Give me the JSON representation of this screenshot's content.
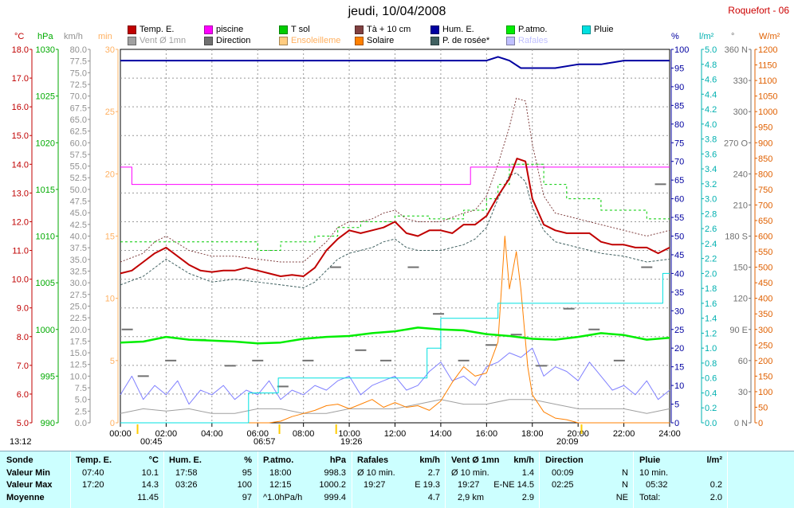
{
  "header": {
    "title": "jeudi, 10/04/2008",
    "station": "Roquefort - 06"
  },
  "legend": [
    {
      "label": "Temp. E.",
      "color": "#c00000"
    },
    {
      "label": "piscine",
      "color": "#ff00ff"
    },
    {
      "label": "T sol",
      "color": "#00cc00"
    },
    {
      "label": "Tà + 10 cm",
      "color": "#804040"
    },
    {
      "label": "Hum. E.",
      "color": "#0000a0"
    },
    {
      "label": "P.atmo.",
      "color": "#00ee00"
    },
    {
      "label": "Pluie",
      "color": "#00e0e0"
    },
    {
      "label": "Vent Ø 1mn",
      "color": "#a0a0a0"
    },
    {
      "label": "Direction",
      "color": "#707070"
    },
    {
      "label": "Ensoleilleme",
      "color": "#ffcc80"
    },
    {
      "label": "Solaire",
      "color": "#ff8000"
    },
    {
      "label": "P. de rosée*",
      "color": "#406060"
    },
    {
      "label": "Rafales",
      "color": "#c0c0ff"
    }
  ],
  "unit_headers": [
    {
      "label": "°C",
      "color": "#c00000"
    },
    {
      "label": "hPa",
      "color": "#00aa00"
    },
    {
      "label": "km/h",
      "color": "#909090"
    },
    {
      "label": "min",
      "color": "#ffb060"
    },
    {
      "label": "%",
      "color": "#0000a0"
    },
    {
      "label": "l/m²",
      "color": "#00b0b0"
    },
    {
      "label": "°",
      "color": "#707070"
    },
    {
      "label": "W/m²",
      "color": "#e06000"
    }
  ],
  "sun_times": [
    "13:12",
    "00:45",
    "06:57",
    "19:26",
    "20:09"
  ],
  "chart_data": {
    "type": "line",
    "x_ticks": [
      "00:00",
      "02:00",
      "04:00",
      "06:00",
      "08:00",
      "10:00",
      "12:00",
      "14:00",
      "16:00",
      "18:00",
      "20:00",
      "22:00",
      "24:00"
    ],
    "xlim": [
      0,
      24
    ],
    "axes": {
      "temp_c": {
        "range": [
          5,
          18
        ],
        "ticks": [
          "5.0",
          "6.0",
          "7.0",
          "8.0",
          "9.0",
          "10.0",
          "11.0",
          "12.0",
          "13.0",
          "14.0",
          "15.0",
          "16.0",
          "17.0",
          "18.0"
        ],
        "color": "#c00000"
      },
      "pressure_hpa": {
        "range": [
          990,
          1030
        ],
        "ticks": [
          "990",
          "995",
          "1000",
          "1005",
          "1010",
          "1015",
          "1020",
          "1025",
          "1030"
        ],
        "color": "#00aa00"
      },
      "wind_kmh": {
        "range": [
          0,
          80
        ],
        "step": 2.5,
        "color": "#909090"
      },
      "sun_min": {
        "range": [
          0,
          30
        ],
        "ticks": [
          "0",
          "5",
          "10",
          "15",
          "20",
          "25",
          "30"
        ],
        "color": "#ffb060"
      },
      "humidity_pct": {
        "range": [
          0,
          100
        ],
        "step": 5,
        "color": "#0000a0"
      },
      "rain_lm2": {
        "range": [
          0,
          5
        ],
        "step": 0.2,
        "color": "#00b0b0"
      },
      "direction_deg": {
        "range": [
          0,
          360
        ],
        "ticks": [
          "0 N",
          "30",
          "60",
          "90 E",
          "120",
          "150",
          "180 S",
          "210",
          "240",
          "270 O",
          "300",
          "330",
          "360 N"
        ],
        "color": "#707070"
      },
      "solar_wm2": {
        "range": [
          0,
          1200
        ],
        "step": 50,
        "color": "#e06000"
      }
    },
    "series": [
      {
        "name": "Temp. E.",
        "axis": "temp_c",
        "color": "#c00000",
        "width": 2,
        "x": [
          0,
          0.5,
          1,
          1.5,
          2,
          2.5,
          3,
          3.5,
          4,
          4.5,
          5,
          5.5,
          6,
          6.5,
          7,
          7.5,
          8,
          8.5,
          9,
          9.5,
          10,
          10.5,
          11,
          11.5,
          12,
          12.5,
          13,
          13.5,
          14,
          14.5,
          15,
          15.5,
          16,
          16.5,
          17,
          17.33,
          17.7,
          18,
          18.5,
          19,
          19.5,
          20,
          20.5,
          21,
          21.5,
          22,
          22.5,
          23,
          23.5,
          24
        ],
        "y": [
          10.2,
          10.3,
          10.6,
          10.9,
          11.1,
          10.8,
          10.5,
          10.3,
          10.25,
          10.3,
          10.3,
          10.4,
          10.3,
          10.2,
          10.1,
          10.15,
          10.1,
          10.4,
          11.0,
          11.4,
          11.7,
          11.6,
          11.7,
          11.8,
          12.0,
          11.6,
          11.5,
          11.7,
          11.7,
          11.6,
          11.9,
          11.9,
          12.2,
          12.9,
          13.5,
          14.2,
          14.1,
          12.8,
          11.9,
          11.7,
          11.6,
          11.6,
          11.6,
          11.3,
          11.2,
          11.2,
          11.1,
          11.1,
          10.9,
          11.1
        ]
      },
      {
        "name": "Tà + 10 cm",
        "axis": "temp_c",
        "color": "#804040",
        "dash": "2,2",
        "x": [
          0,
          1,
          1.5,
          2,
          3,
          4,
          5,
          6,
          7,
          8,
          9,
          9.5,
          10,
          10.5,
          11,
          11.5,
          12,
          12.5,
          13,
          14,
          15,
          15.5,
          16,
          16.5,
          17,
          17.3,
          17.7,
          18,
          18.5,
          19,
          20,
          21,
          22,
          23,
          24
        ],
        "y": [
          10.6,
          10.9,
          11.3,
          11.5,
          11.0,
          10.8,
          10.8,
          10.7,
          10.6,
          10.6,
          11.3,
          11.8,
          12.0,
          12.0,
          12.1,
          12.3,
          12.4,
          12.1,
          12.0,
          12.0,
          12.3,
          12.4,
          12.9,
          14.0,
          15.3,
          16.3,
          16.2,
          14.7,
          12.9,
          12.3,
          12.1,
          11.9,
          11.7,
          11.5,
          11.7
        ]
      },
      {
        "name": "P. de rosée*",
        "axis": "temp_c",
        "color": "#406060",
        "dash": "3,2",
        "x": [
          0,
          1,
          1.5,
          2,
          3,
          4,
          5,
          6,
          7,
          8,
          8.5,
          9,
          9.5,
          10,
          10.5,
          11,
          11.5,
          12,
          12.5,
          13,
          14,
          15,
          15.5,
          16,
          16.5,
          17,
          17.3,
          17.7,
          18,
          18.5,
          19,
          20,
          21,
          22,
          23,
          24
        ],
        "y": [
          9.8,
          10.1,
          10.4,
          10.7,
          10.2,
          9.9,
          10.0,
          9.9,
          9.8,
          9.7,
          9.9,
          10.3,
          10.7,
          10.9,
          11.0,
          11.1,
          11.3,
          11.4,
          11.1,
          11.0,
          11.0,
          11.2,
          11.4,
          11.8,
          12.8,
          13.6,
          13.7,
          13.4,
          12.5,
          11.7,
          11.3,
          11.1,
          10.9,
          10.8,
          10.6,
          10.7
        ]
      },
      {
        "name": "piscine",
        "axis": "temp_c",
        "color": "#ff00ff",
        "step": true,
        "x": [
          0,
          0.5,
          0.5,
          15.3,
          15.3,
          15.7,
          15.7,
          24
        ],
        "y": [
          13.9,
          13.9,
          13.3,
          13.3,
          13.9,
          13.9,
          13.9,
          13.9
        ]
      },
      {
        "name": "T sol",
        "axis": "temp_c",
        "color": "#00cc00",
        "dash": "3,3",
        "step": true,
        "x": [
          0,
          6,
          6,
          7,
          7,
          8.5,
          8.5,
          9.5,
          9.5,
          10.5,
          10.5,
          12,
          12,
          13.5,
          13.5,
          15,
          15,
          16,
          16,
          16.5,
          16.5,
          17,
          17,
          18.5,
          18.5,
          19.5,
          19.5,
          21,
          21,
          23,
          23,
          24
        ],
        "y": [
          11.3,
          11.3,
          11.0,
          11.0,
          11.3,
          11.3,
          11.5,
          11.5,
          11.8,
          11.8,
          12.0,
          12.0,
          12.2,
          12.2,
          12.1,
          12.1,
          12.4,
          12.4,
          12.8,
          12.8,
          13.3,
          13.3,
          14.0,
          14.0,
          13.3,
          13.3,
          12.8,
          12.8,
          12.4,
          12.4,
          12.1,
          12.1
        ]
      },
      {
        "name": "Hum. E.",
        "axis": "humidity_pct",
        "color": "#0000a0",
        "width": 2,
        "x": [
          0,
          1,
          2,
          3,
          4,
          5,
          6,
          7,
          8,
          9,
          10,
          11,
          12,
          13,
          14,
          15,
          16,
          16.5,
          17,
          17.5,
          18,
          19,
          20,
          21,
          22,
          23,
          24
        ],
        "y": [
          97,
          97,
          97,
          97,
          97,
          97,
          97,
          97,
          97,
          97,
          97,
          97,
          97,
          97,
          97,
          97,
          97,
          98,
          97,
          95,
          95,
          95,
          96,
          96,
          97,
          97,
          97
        ]
      },
      {
        "name": "P.atmo.",
        "axis": "pressure_hpa",
        "color": "#00ee00",
        "width": 2.5,
        "x": [
          0,
          1,
          2,
          3,
          4,
          5,
          6,
          7,
          8,
          9,
          10,
          11,
          12,
          13,
          14,
          15,
          16,
          17,
          18,
          19,
          20,
          21,
          22,
          23,
          24
        ],
        "y": [
          998.6,
          998.7,
          999.2,
          998.9,
          998.8,
          998.7,
          998.5,
          998.6,
          999.0,
          999.2,
          999.3,
          999.6,
          999.8,
          1000.2,
          1000.0,
          999.9,
          999.5,
          999.3,
          999.0,
          998.9,
          999.2,
          999.6,
          999.4,
          998.9,
          999.1
        ]
      },
      {
        "name": "Pluie",
        "axis": "rain_lm2",
        "color": "#00e0e0",
        "step": true,
        "x": [
          0,
          5.6,
          5.6,
          6.9,
          6.9,
          13.4,
          13.4,
          14.0,
          14.0,
          16.5,
          16.5,
          17.9,
          17.9,
          23.7,
          23.7,
          24
        ],
        "y": [
          0,
          0,
          0.4,
          0.4,
          0.6,
          0.6,
          1.0,
          1.0,
          1.4,
          1.4,
          1.6,
          1.6,
          1.6,
          1.6,
          2.0,
          2.0
        ]
      },
      {
        "name": "Solaire",
        "axis": "solar_wm2",
        "color": "#ff8000",
        "width": 1,
        "x": [
          0,
          6.5,
          7,
          7.5,
          8,
          8.5,
          9,
          9.5,
          10,
          10.5,
          11,
          11.5,
          12,
          12.5,
          13,
          13.5,
          14,
          14.5,
          15,
          15.5,
          16,
          16.5,
          16.8,
          17,
          17.3,
          17.5,
          17.8,
          18,
          18.5,
          19,
          19.5,
          20,
          24
        ],
        "y": [
          0,
          0,
          5,
          20,
          30,
          40,
          55,
          60,
          45,
          60,
          75,
          50,
          65,
          50,
          55,
          40,
          70,
          130,
          180,
          150,
          160,
          260,
          600,
          430,
          550,
          430,
          180,
          90,
          35,
          15,
          10,
          0,
          0
        ]
      },
      {
        "name": "Vent Ø 1mn",
        "axis": "wind_kmh",
        "color": "#a0a0a0",
        "width": 1,
        "x": [
          0,
          1,
          2,
          3,
          4,
          5,
          6,
          7,
          8,
          9,
          10,
          11,
          12,
          13,
          14,
          15,
          16,
          17,
          18,
          19,
          20,
          21,
          22,
          23,
          24
        ],
        "y": [
          2,
          3,
          2.5,
          3,
          2,
          2,
          3,
          3,
          2,
          2,
          3,
          3,
          3,
          4,
          5,
          4,
          4,
          5,
          5,
          4,
          3,
          3,
          3,
          2,
          3
        ]
      },
      {
        "name": "Rafales",
        "axis": "wind_kmh",
        "color": "#8080ff",
        "width": 1,
        "x": [
          0,
          0.5,
          1,
          1.5,
          2,
          2.5,
          3,
          3.5,
          4,
          4.5,
          5,
          5.5,
          6,
          6.5,
          7,
          7.5,
          8,
          8.5,
          9,
          9.5,
          10,
          10.5,
          11,
          11.5,
          12,
          12.5,
          13,
          13.5,
          14,
          14.5,
          15,
          15.5,
          16,
          16.5,
          17,
          17.5,
          18,
          18.5,
          19,
          19.5,
          20,
          20.5,
          21,
          21.5,
          22,
          22.5,
          23,
          23.5,
          24
        ],
        "y": [
          6,
          10,
          5,
          8,
          6,
          9,
          4,
          7,
          6,
          8,
          5,
          7,
          6,
          9,
          5,
          7,
          6,
          8,
          7,
          9,
          10,
          6,
          8,
          9,
          10,
          7,
          8,
          11,
          13,
          9,
          10,
          8,
          12,
          13,
          15,
          14,
          16,
          10,
          12,
          11,
          9,
          13,
          10,
          7,
          8,
          6,
          9,
          5,
          7
        ]
      },
      {
        "name": "Direction",
        "axis": "direction_deg",
        "color": "#707070",
        "marker": "dash",
        "x": [
          0.3,
          1,
          2.2,
          3.5,
          4.8,
          6,
          7.1,
          8.2,
          9.4,
          10.5,
          11.6,
          12.8,
          13.9,
          15,
          16.2,
          17.3,
          18.4,
          19.6,
          20.7,
          21.8,
          23,
          23.6
        ],
        "y": [
          90,
          45,
          60,
          80,
          55,
          60,
          35,
          60,
          150,
          70,
          60,
          150,
          105,
          60,
          75,
          85,
          55,
          110,
          90,
          60,
          150,
          230
        ]
      }
    ]
  },
  "summary": {
    "sonde": {
      "title": "Sonde",
      "rows": [
        "Valeur Min",
        "Valeur Max",
        "Moyenne"
      ]
    },
    "temp": {
      "title": "Temp. E.",
      "unit": "°C",
      "rows": [
        [
          "07:40",
          "10.1"
        ],
        [
          "17:20",
          "14.3"
        ],
        [
          "",
          "11.45"
        ]
      ]
    },
    "hum": {
      "title": "Hum. E.",
      "unit": "%",
      "rows": [
        [
          "17:58",
          "95"
        ],
        [
          "03:26",
          "100"
        ],
        [
          "",
          "97"
        ]
      ]
    },
    "patmo": {
      "title": "P.atmo.",
      "unit": "hPa",
      "rows": [
        [
          "18:00",
          "998.3"
        ],
        [
          "12:15",
          "1000.2"
        ],
        [
          "^1.0hPa/h",
          "999.4"
        ]
      ]
    },
    "rafales": {
      "title": "Rafales",
      "unit": "km/h",
      "rows": [
        [
          "Ø 10 min.",
          "2.7"
        ],
        [
          "19:27",
          "E 19.3"
        ],
        [
          "",
          "4.7"
        ]
      ]
    },
    "vent": {
      "title": "Vent Ø 1mn",
      "unit": "km/h",
      "rows": [
        [
          "Ø 10 min.",
          "1.4"
        ],
        [
          "19:27",
          "E-NE 14.5"
        ],
        [
          "2,9 km",
          "2.9"
        ]
      ]
    },
    "direction": {
      "title": "Direction",
      "unit": "",
      "rows": [
        [
          "00:09",
          "N"
        ],
        [
          "02:25",
          "N"
        ],
        [
          "",
          "NE"
        ]
      ]
    },
    "pluie": {
      "title": "Pluie",
      "unit": "l/m²",
      "rows": [
        [
          "10 min.",
          ""
        ],
        [
          "05:32",
          "0.2"
        ],
        [
          "Total:",
          "2.0"
        ]
      ]
    }
  }
}
